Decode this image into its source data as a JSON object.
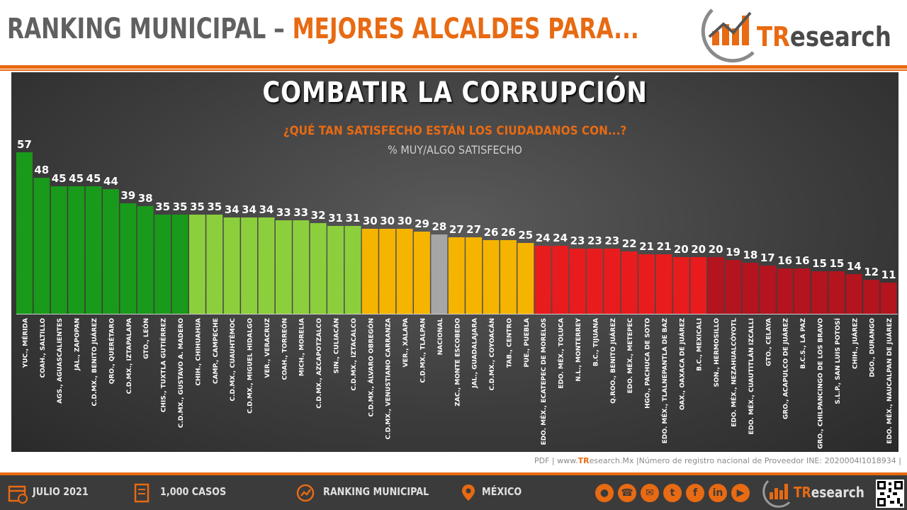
{
  "header": {
    "title_part1": "RANKING MUNICIPAL – ",
    "title_part2": "MEJORES ALCALDES PARA...",
    "logo_tr": "TR",
    "logo_rest": "esearch"
  },
  "colors": {
    "accent": "#e86a12",
    "dark_green": "#1a9a1a",
    "light_green": "#8ccf3c",
    "yellow": "#f5b400",
    "gray": "#a6a6a6",
    "red": "#e81c1c",
    "dark_red": "#b3141e"
  },
  "chart_data": {
    "type": "bar",
    "title": "COMBATIR LA CORRUPCIÓN",
    "subtitle": "¿QUÉ TAN SATISFECHO  ESTÁN LOS CIUDADANOS CON...?",
    "ylabel": "% MUY/ALGO SATISFECHO",
    "ylim": [
      0,
      57
    ],
    "grid": false,
    "legend": "none",
    "categories": [
      "YUC., MÉRIDA",
      "COAH., SALTILLO",
      "AGS., AGUASCALIENTES",
      "JAL., ZAPOPAN",
      "C.D.MX., BENITO JUÁREZ",
      "QRO., QUERÉTARO",
      "C.D.MX., IZTAPALAPA",
      "GTO., LEÓN",
      "CHIS., TUXTLA GUTIÉRREZ",
      "C.D.MX., GUSTAVO A. MADERO",
      "CHIH., CHIHUAHUA",
      "CAMP., CAMPECHE",
      "C.D.MX., CUAUHTÉMOC",
      "C.D.MX., MIGUEL HIDALGO",
      "VER., VERACRUZ",
      "COAH., TORREÓN",
      "MICH., MORELIA",
      "C.D.MX., AZCAPOTZALCO",
      "SIN., CULIACÁN",
      "C.D.MX., IZTACALCO",
      "C.D.MX., ÁLVARO OBREGÓN",
      "C.D.MX., VENUSTIANO CARRANZA",
      "VER., XALAPA",
      "C.D.MX., TLALPAN",
      "NACIONAL",
      "ZAC., MONTE ESCOBEDO",
      "JAL., GUADALAJARA",
      "C.D.MX., COYOACÁN",
      "TAB., CENTRO",
      "PUE., PUEBLA",
      "EDO. MÉX., ECATEPEC DE MORELOS",
      "EDO. MÉX., TOLUCA",
      "N.L., MONTERREY",
      "B.C., TIJUANA",
      "Q.ROO., BENITO JUÁREZ",
      "EDO. MÉX., METEPEC",
      "HGO., PACHUCA DE SOTO",
      "EDO. MÉX., TLALNEPANTLA DE BAZ",
      "OAX., OAXACA DE JUÁREZ",
      "B.C., MEXICALI",
      "SON., HERMOSILLO",
      "EDO. MÉX., NEZAHUALCÓYOTL",
      "EDO. MÉX., CUAUTITLÁN IZCALLI",
      "GTO., CELAYA",
      "GRO., ACAPULCO DE JUÁREZ",
      "B.C.S., LA PAZ",
      "GRO., CHILPANCINGO DE LOS BRAVO",
      "S.L.P., SAN LUIS POTOSÍ",
      "CHIH., JUÁREZ",
      "DGO., DURANGO",
      "EDO. MÉX., NAUCALPAN DE JUÁREZ"
    ],
    "values": [
      57,
      48,
      45,
      45,
      45,
      44,
      39,
      38,
      35,
      35,
      35,
      35,
      34,
      34,
      34,
      33,
      33,
      32,
      31,
      31,
      30,
      30,
      30,
      29,
      28,
      27,
      27,
      26,
      26,
      25,
      24,
      24,
      23,
      23,
      23,
      22,
      21,
      21,
      20,
      20,
      20,
      19,
      18,
      17,
      16,
      16,
      15,
      15,
      14,
      12,
      11
    ],
    "bar_colors": [
      "dark_green",
      "dark_green",
      "dark_green",
      "dark_green",
      "dark_green",
      "dark_green",
      "dark_green",
      "dark_green",
      "dark_green",
      "dark_green",
      "light_green",
      "light_green",
      "light_green",
      "light_green",
      "light_green",
      "light_green",
      "light_green",
      "light_green",
      "light_green",
      "light_green",
      "yellow",
      "yellow",
      "yellow",
      "yellow",
      "gray",
      "yellow",
      "yellow",
      "yellow",
      "yellow",
      "yellow",
      "red",
      "red",
      "red",
      "red",
      "red",
      "red",
      "red",
      "red",
      "red",
      "red",
      "dark_red",
      "dark_red",
      "dark_red",
      "dark_red",
      "dark_red",
      "dark_red",
      "dark_red",
      "dark_red",
      "dark_red",
      "dark_red",
      "dark_red"
    ]
  },
  "footnote": {
    "pre": "PDF | www.",
    "brand": "TR",
    "post": "esearch.Mx  |Número de registro nacional de Proveedor INE: 2020004I1018934  |"
  },
  "footer": {
    "date": "JULIO 2021",
    "cases": "1,000 CASOS",
    "ranking": "RANKING MUNICIPAL",
    "country": "MÉXICO",
    "logo_tr": "TR",
    "logo_rest": "esearch",
    "social_icons": [
      "globe-icon",
      "phone-icon",
      "email-icon",
      "twitter-icon",
      "facebook-icon",
      "linkedin-icon",
      "youtube-icon"
    ]
  }
}
